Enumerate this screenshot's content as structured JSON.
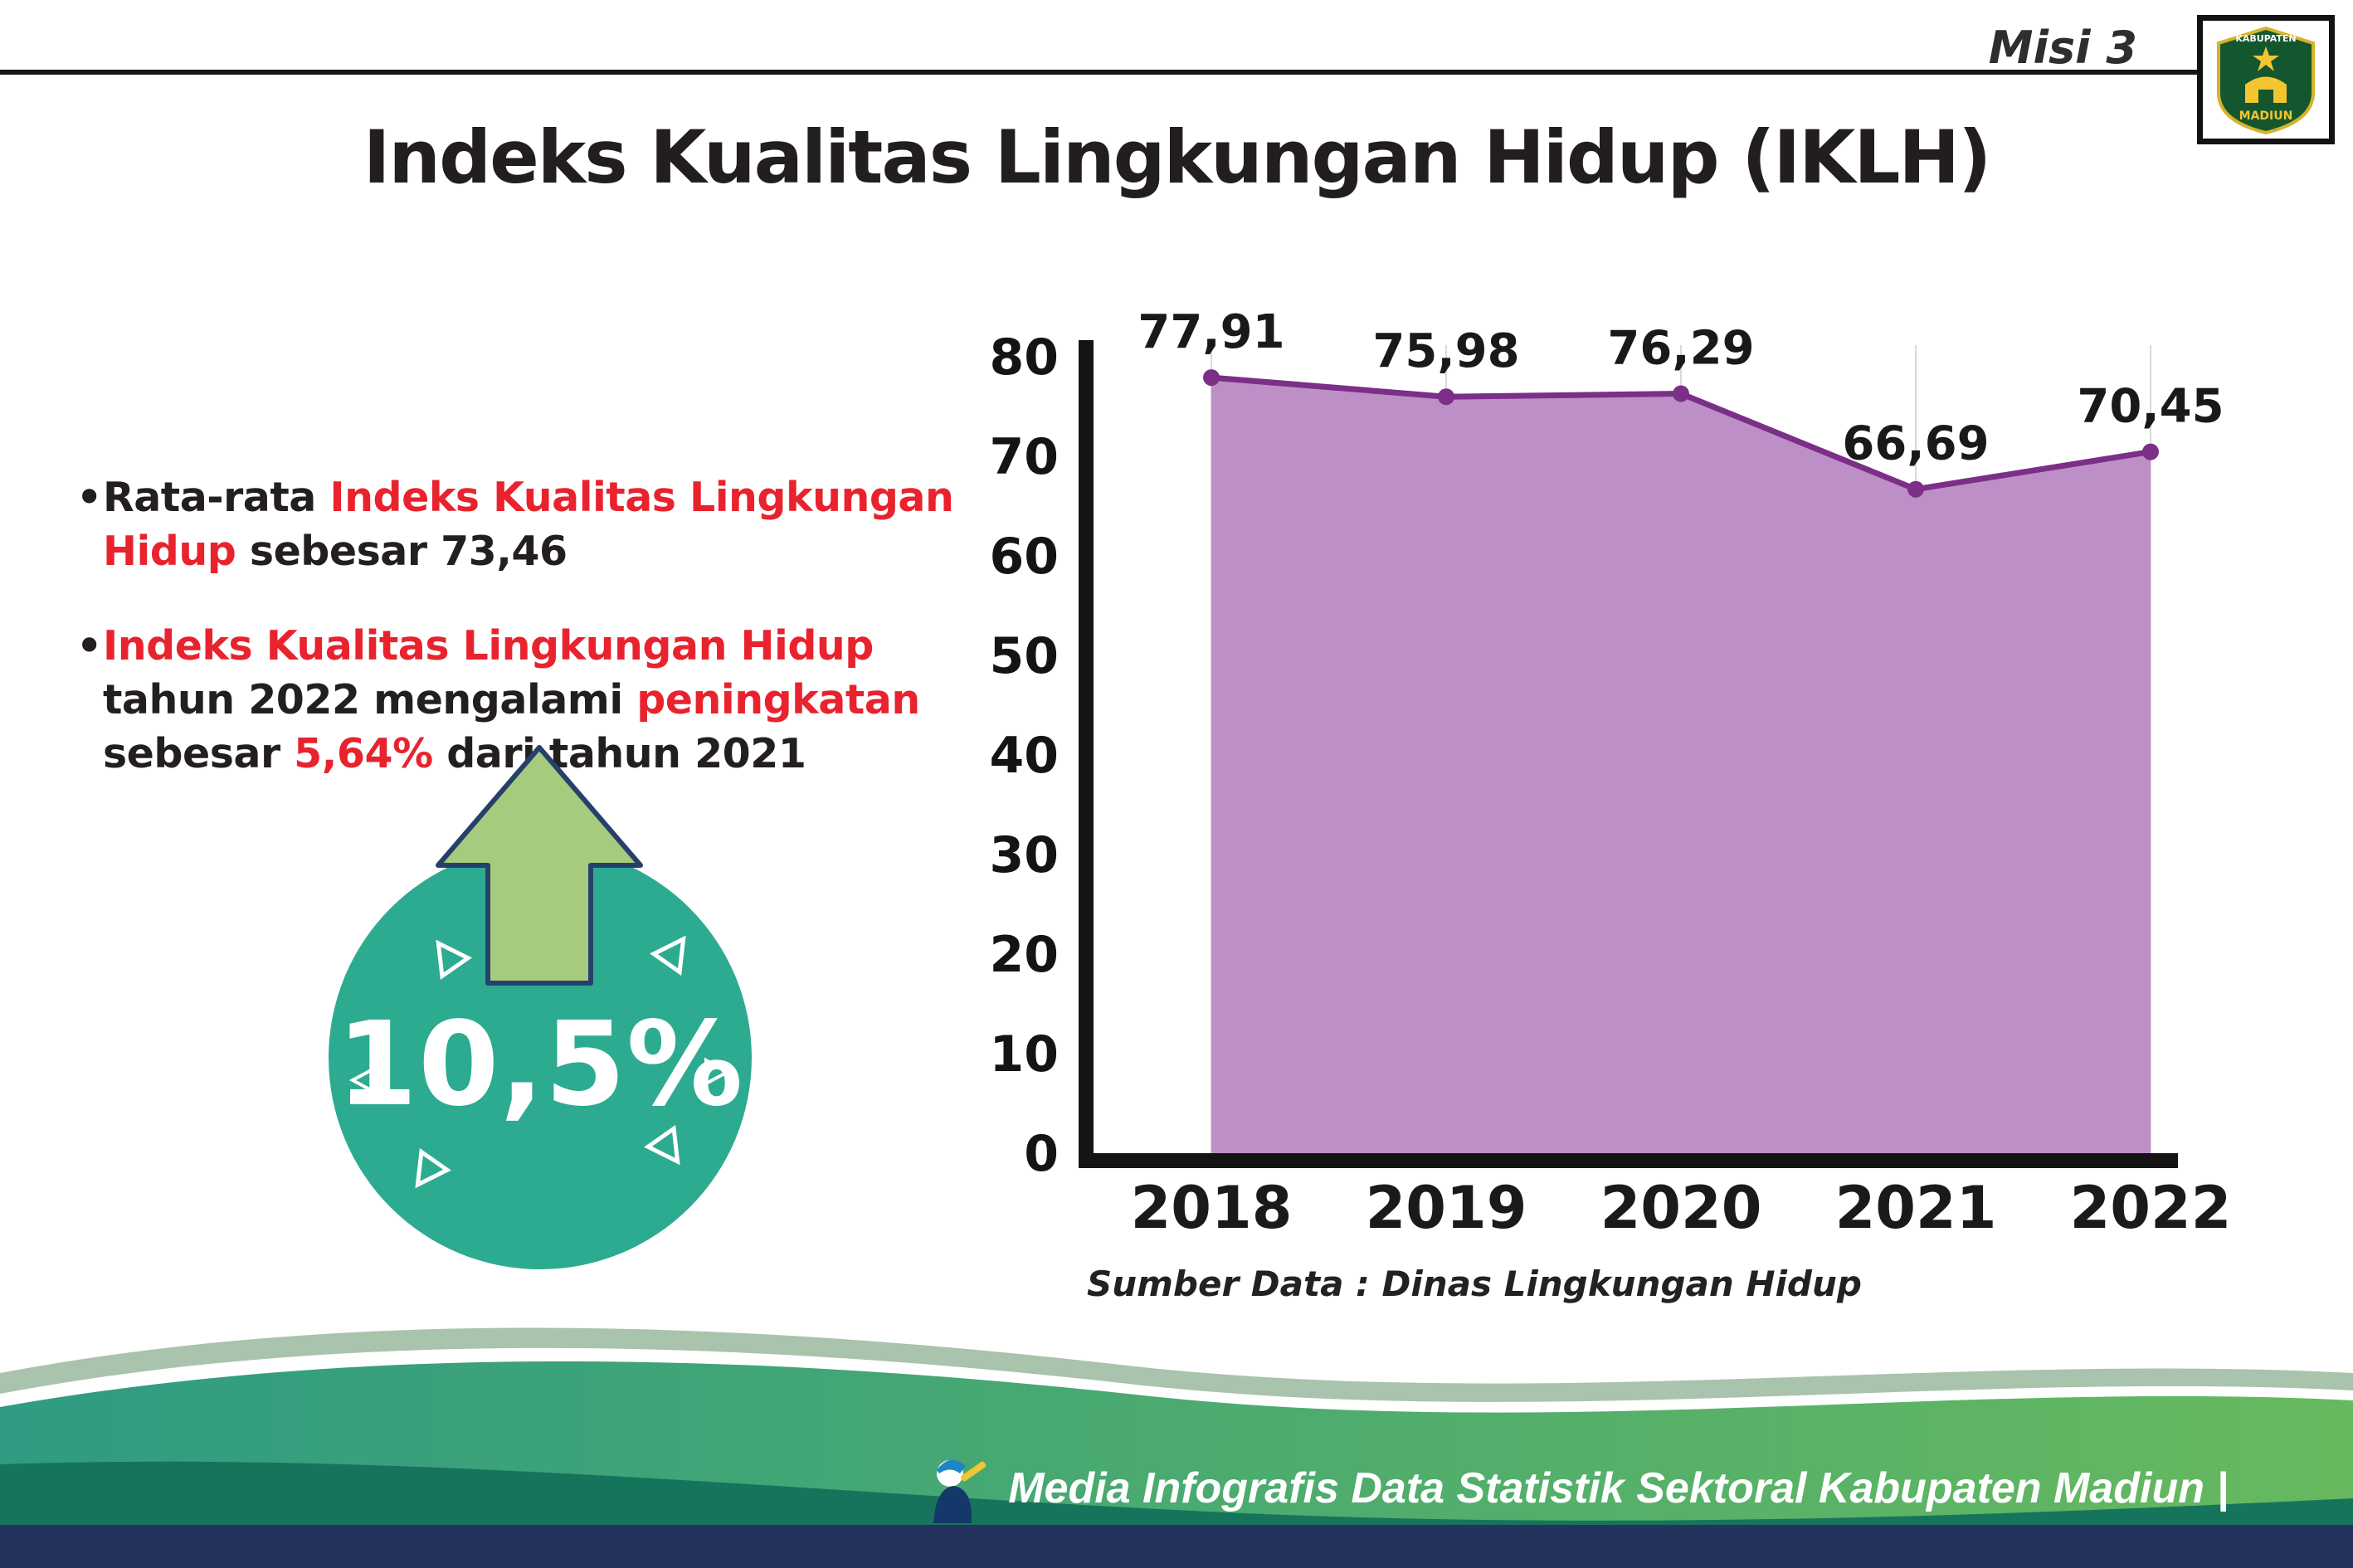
{
  "header": {
    "misi_label": "Misi 3",
    "title": "Indeks Kualitas Lingkungan Hidup (IKLH)"
  },
  "logo": {
    "top_text": "KABUPATEN",
    "bottom_text": "MADIUN"
  },
  "bullets": [
    {
      "marker": "•",
      "segments": [
        {
          "text": "Rata-rata ",
          "style": "dark"
        },
        {
          "text": "Indeks Kualitas Lingkungan Hidup",
          "style": "red"
        },
        {
          "text": " sebesar 73,46",
          "style": "dark"
        }
      ]
    },
    {
      "marker": "•",
      "segments": [
        {
          "text": "Indeks Kualitas Lingkungan Hidup",
          "style": "red"
        },
        {
          "text": " tahun 2022 mengalami ",
          "style": "dark"
        },
        {
          "text": "peningkatan",
          "style": "red"
        },
        {
          "text": " sebesar ",
          "style": "dark"
        },
        {
          "text": "5,64%",
          "style": "red"
        },
        {
          "text": " dari tahun 2021",
          "style": "dark"
        }
      ]
    }
  ],
  "badge": {
    "value": "10,5%",
    "circle_color": "#2cab90",
    "arrow_color": "#a6cb7e"
  },
  "chart_data": {
    "type": "area",
    "title": "",
    "xlabel": "",
    "ylabel": "",
    "categories": [
      "2018",
      "2019",
      "2020",
      "2021",
      "2022"
    ],
    "values": [
      77.91,
      75.98,
      76.29,
      66.69,
      70.45
    ],
    "labels": [
      "77,91",
      "75,98",
      "76,29",
      "66,69",
      "70,45"
    ],
    "ylim": [
      0,
      80
    ],
    "yticks": [
      0,
      10,
      20,
      30,
      40,
      50,
      60,
      70,
      80
    ],
    "grid": "vertical",
    "legend": "none",
    "line_color": "#7b2f87",
    "fill_color": "#bd8fc6",
    "source": "Sumber Data : Dinas Lingkungan Hidup"
  },
  "footer": {
    "text": "Media Infografis Data Statistik Sektoral Kabupaten Madiun |"
  },
  "colors": {
    "accent_red": "#e8232e",
    "teal": "#2cab90",
    "navy": "#26325e",
    "deep_green": "#17745c"
  }
}
